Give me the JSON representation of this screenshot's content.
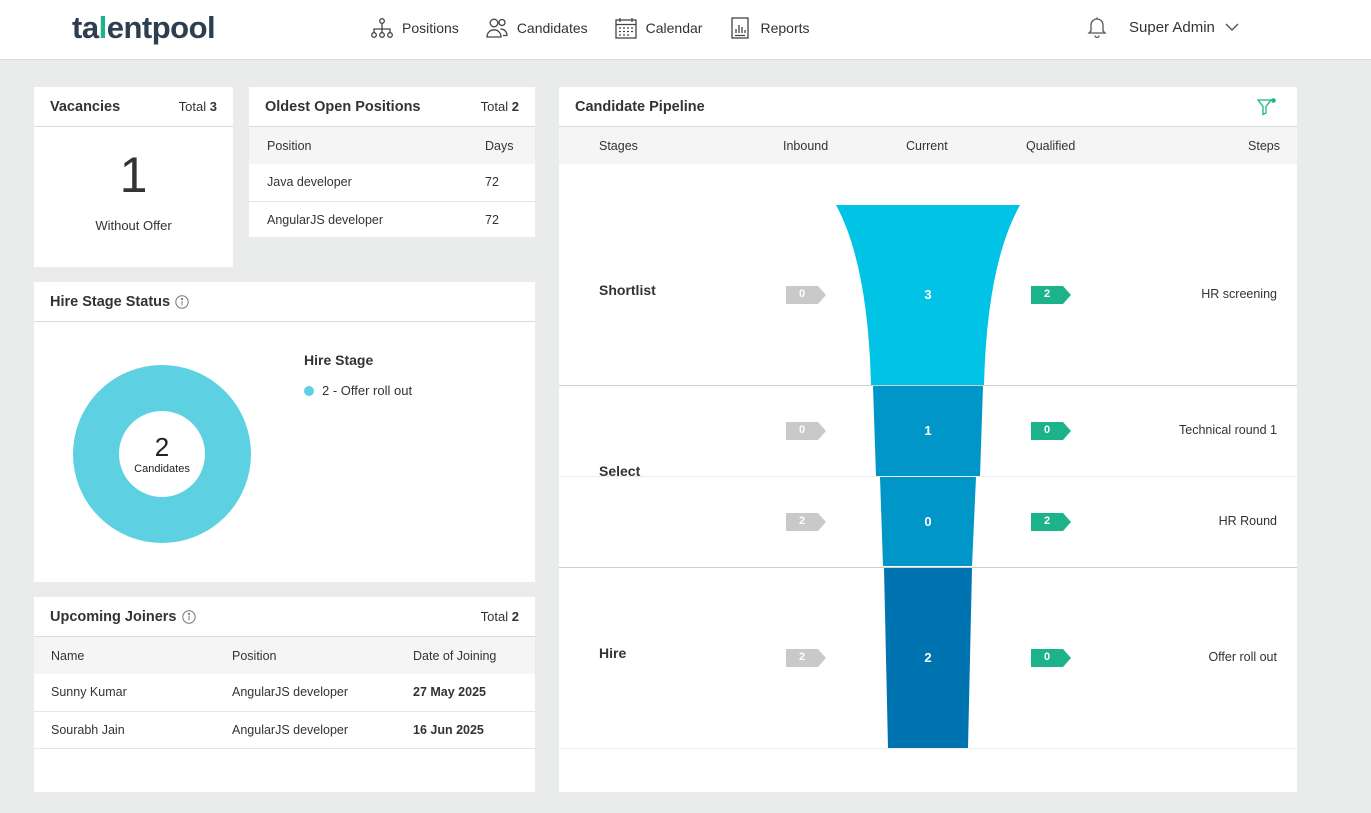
{
  "brand": {
    "logo_left": "ta",
    "logo_mid": "l",
    "logo_right": "entpool"
  },
  "nav": [
    {
      "label": "Positions",
      "icon": "org-chart-icon"
    },
    {
      "label": "Candidates",
      "icon": "users-icon"
    },
    {
      "label": "Calendar",
      "icon": "calendar-icon"
    },
    {
      "label": "Reports",
      "icon": "report-icon"
    }
  ],
  "user": {
    "name": "Super Admin"
  },
  "vacancies": {
    "title": "Vacancies",
    "total_label": "Total",
    "total": "3",
    "count": "1",
    "caption": "Without Offer"
  },
  "oldest": {
    "title": "Oldest Open Positions",
    "total_label": "Total",
    "total": "2",
    "columns": [
      "Position",
      "Days"
    ],
    "rows": [
      [
        "Java developer",
        "72"
      ],
      [
        "AngularJS developer",
        "72"
      ]
    ]
  },
  "hire_status": {
    "title": "Hire Stage Status",
    "center_value": "2",
    "center_label": "Candidates",
    "legend_title": "Hire Stage",
    "legend_item": "2 - Offer roll out",
    "color": "#5dd1e2"
  },
  "joiners": {
    "title": "Upcoming Joiners",
    "total_label": "Total",
    "total": "2",
    "columns": [
      "Name",
      "Position",
      "Date of Joining"
    ],
    "rows": [
      [
        "Sunny Kumar",
        "AngularJS developer",
        "27 May 2025"
      ],
      [
        "Sourabh Jain",
        "AngularJS developer",
        "16 Jun 2025"
      ]
    ]
  },
  "pipeline": {
    "title": "Candidate Pipeline",
    "columns": {
      "stages": "Stages",
      "inbound": "Inbound",
      "current": "Current",
      "qualified": "Qualified",
      "steps": "Steps"
    },
    "stages": [
      "Shortlist",
      "Select",
      "Hire"
    ],
    "steps": [
      {
        "stage": "Shortlist",
        "step": "HR screening",
        "inbound": "0",
        "current": "3",
        "qualified": "2"
      },
      {
        "stage": "Select",
        "step": "Technical round 1",
        "inbound": "0",
        "current": "1",
        "qualified": "0"
      },
      {
        "stage": "Select",
        "step": "HR Round",
        "inbound": "2",
        "current": "0",
        "qualified": "2"
      },
      {
        "stage": "Hire",
        "step": "Offer roll out",
        "inbound": "2",
        "current": "2",
        "qualified": "0"
      }
    ],
    "colors": {
      "funnel_1": "#00c3e6",
      "funnel_2": "#0096c8",
      "funnel_3": "#0074b0",
      "inbound_tag": "#c9c9c9",
      "qualified_tag": "#1db38a"
    }
  }
}
